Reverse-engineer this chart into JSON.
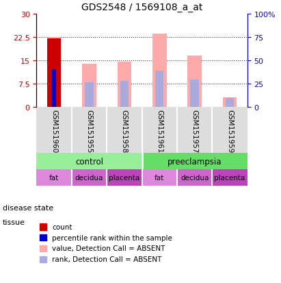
{
  "title": "GDS2548 / 1569108_a_at",
  "samples": [
    "GSM151960",
    "GSM151955",
    "GSM151958",
    "GSM151961",
    "GSM151957",
    "GSM151959"
  ],
  "bar_value_absent": [
    22.5,
    13.8,
    14.5,
    23.5,
    16.5,
    3.0
  ],
  "bar_rank_absent": [
    12.0,
    7.8,
    8.2,
    11.5,
    8.8,
    2.8
  ],
  "count_value": [
    22.0,
    null,
    null,
    null,
    null,
    null
  ],
  "count_rank": [
    12.0,
    null,
    null,
    null,
    null,
    null
  ],
  "left_ylim": [
    0,
    30
  ],
  "right_ylim": [
    0,
    30
  ],
  "left_yticks": [
    0,
    7.5,
    15,
    22.5,
    30
  ],
  "left_yticklabels": [
    "0",
    "7.5",
    "15",
    "22.5",
    "30"
  ],
  "right_yticks": [
    0,
    7.5,
    15,
    22.5,
    30
  ],
  "right_yticklabels": [
    "0",
    "25",
    "50",
    "75",
    "100%"
  ],
  "left_color": "#cc0000",
  "right_color": "#0000cc",
  "color_value_absent": "#ffaaaa",
  "color_rank_absent": "#aaaadd",
  "color_count": "#cc0000",
  "color_prank": "#0000cc",
  "bar_width": 0.4,
  "disease_state": [
    "control",
    "control",
    "control",
    "preeclampsia",
    "preeclampsia",
    "preeclampsia"
  ],
  "tissue": [
    "fat",
    "decidua",
    "placenta",
    "fat",
    "decidua",
    "placenta"
  ],
  "control_color": "#99ee99",
  "preeclampsia_color": "#66dd66",
  "fat_color": "#dd88dd",
  "decidua_color": "#cc66cc",
  "placenta_color": "#bb44bb",
  "bg_color": "#dddddd",
  "dotted_line_color": "#333333",
  "legend_items": [
    "count",
    "percentile rank within the sample",
    "value, Detection Call = ABSENT",
    "rank, Detection Call = ABSENT"
  ],
  "legend_colors": [
    "#cc0000",
    "#0000cc",
    "#ffaaaa",
    "#aaaadd"
  ]
}
